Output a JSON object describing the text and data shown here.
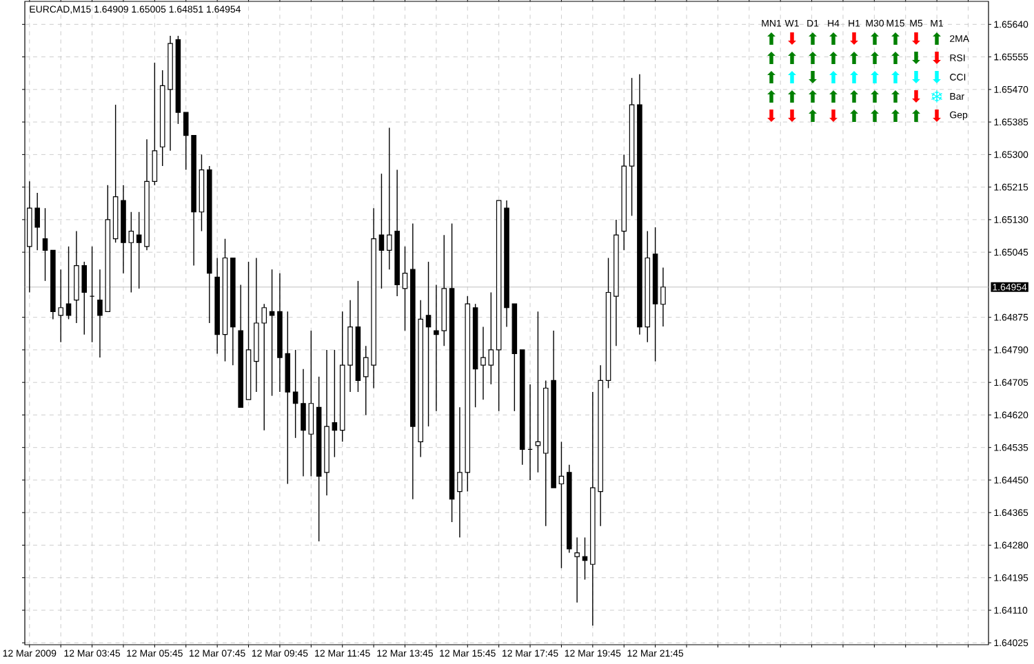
{
  "chart_data": [
    {
      "type": "candlestick",
      "title": "EURCAD,M15  1.64909 1.65005 1.64851 1.64954",
      "color": "#000000",
      "x": [
        "2009-03-12T01:45",
        "2009-03-12T02:00",
        "2009-03-12T02:15",
        "2009-03-12T02:30",
        "2009-03-12T02:45",
        "2009-03-12T03:00",
        "2009-03-12T03:15",
        "2009-03-12T03:30",
        "2009-03-12T03:45",
        "2009-03-12T04:00",
        "2009-03-12T04:15",
        "2009-03-12T04:30",
        "2009-03-12T04:45",
        "2009-03-12T05:00",
        "2009-03-12T05:15",
        "2009-03-12T05:30",
        "2009-03-12T05:45",
        "2009-03-12T06:00",
        "2009-03-12T06:15",
        "2009-03-12T06:30",
        "2009-03-12T06:45",
        "2009-03-12T07:00",
        "2009-03-12T07:15",
        "2009-03-12T07:30",
        "2009-03-12T07:45",
        "2009-03-12T08:00",
        "2009-03-12T08:15",
        "2009-03-12T08:30",
        "2009-03-12T08:45",
        "2009-03-12T09:00",
        "2009-03-12T09:15",
        "2009-03-12T09:30",
        "2009-03-12T09:45",
        "2009-03-12T10:00",
        "2009-03-12T10:15",
        "2009-03-12T10:30",
        "2009-03-12T10:45",
        "2009-03-12T11:00",
        "2009-03-12T11:15",
        "2009-03-12T11:30",
        "2009-03-12T11:45",
        "2009-03-12T12:00",
        "2009-03-12T12:15",
        "2009-03-12T12:30",
        "2009-03-12T12:45",
        "2009-03-12T13:00",
        "2009-03-12T13:15",
        "2009-03-12T13:30",
        "2009-03-12T13:45",
        "2009-03-12T14:00",
        "2009-03-12T14:15",
        "2009-03-12T14:30",
        "2009-03-12T14:45",
        "2009-03-12T15:00",
        "2009-03-12T15:15",
        "2009-03-12T15:30",
        "2009-03-12T15:45",
        "2009-03-12T16:00",
        "2009-03-12T16:15",
        "2009-03-12T16:30",
        "2009-03-12T16:45",
        "2009-03-12T17:00",
        "2009-03-12T17:15",
        "2009-03-12T17:30",
        "2009-03-12T17:45",
        "2009-03-12T18:00",
        "2009-03-12T18:15",
        "2009-03-12T18:30",
        "2009-03-12T18:45",
        "2009-03-12T19:00",
        "2009-03-12T19:15",
        "2009-03-12T19:30",
        "2009-03-12T19:45",
        "2009-03-12T20:00",
        "2009-03-12T20:15",
        "2009-03-12T20:30",
        "2009-03-12T20:45",
        "2009-03-12T21:00",
        "2009-03-12T21:15",
        "2009-03-12T21:30",
        "2009-03-12T21:45",
        "2009-03-12T22:00"
      ],
      "ohlc": [
        [
          1.6506,
          1.6523,
          1.6494,
          1.6516
        ],
        [
          1.6516,
          1.652,
          1.6505,
          1.6511
        ],
        [
          1.6508,
          1.6516,
          1.6497,
          1.6505
        ],
        [
          1.6505,
          1.6505,
          1.6487,
          1.6489
        ],
        [
          1.6488,
          1.65,
          1.6481,
          1.649
        ],
        [
          1.6491,
          1.6506,
          1.6487,
          1.6488
        ],
        [
          1.6492,
          1.651,
          1.6486,
          1.6501
        ],
        [
          1.6501,
          1.6502,
          1.6483,
          1.6494
        ],
        [
          1.6493,
          1.6506,
          1.6481,
          1.6493
        ],
        [
          1.6492,
          1.65,
          1.6477,
          1.6488
        ],
        [
          1.6489,
          1.6522,
          1.6489,
          1.6513
        ],
        [
          1.6508,
          1.6543,
          1.6507,
          1.6519
        ],
        [
          1.6518,
          1.6522,
          1.6499,
          1.6507
        ],
        [
          1.6507,
          1.6515,
          1.6494,
          1.651
        ],
        [
          1.6509,
          1.6515,
          1.6495,
          1.6507
        ],
        [
          1.6506,
          1.6534,
          1.6505,
          1.6523
        ],
        [
          1.6523,
          1.6554,
          1.6522,
          1.6531
        ],
        [
          1.6532,
          1.6552,
          1.6527,
          1.6548
        ],
        [
          1.6547,
          1.6561,
          1.6531,
          1.6559
        ],
        [
          1.656,
          1.6561,
          1.6538,
          1.6541
        ],
        [
          1.6541,
          1.6541,
          1.6526,
          1.6535
        ],
        [
          1.6535,
          1.6535,
          1.6501,
          1.6515
        ],
        [
          1.6515,
          1.653,
          1.651,
          1.6526
        ],
        [
          1.6526,
          1.6527,
          1.6486,
          1.6499
        ],
        [
          1.6498,
          1.6503,
          1.6478,
          1.6483
        ],
        [
          1.6483,
          1.6508,
          1.6476,
          1.6503
        ],
        [
          1.6503,
          1.6503,
          1.6475,
          1.6485
        ],
        [
          1.6484,
          1.6496,
          1.6464,
          1.6464
        ],
        [
          1.6466,
          1.6502,
          1.6466,
          1.6479
        ],
        [
          1.6476,
          1.6503,
          1.6468,
          1.6486
        ],
        [
          1.6486,
          1.6491,
          1.6458,
          1.649
        ],
        [
          1.6489,
          1.65,
          1.6467,
          1.6488
        ],
        [
          1.6489,
          1.6499,
          1.6468,
          1.6477
        ],
        [
          1.6478,
          1.6489,
          1.6444,
          1.6468
        ],
        [
          1.6468,
          1.6479,
          1.6456,
          1.6465
        ],
        [
          1.6465,
          1.6474,
          1.6446,
          1.6458
        ],
        [
          1.6457,
          1.6484,
          1.6446,
          1.6465
        ],
        [
          1.6464,
          1.6472,
          1.6429,
          1.6446
        ],
        [
          1.6447,
          1.6479,
          1.6441,
          1.6459
        ],
        [
          1.646,
          1.6479,
          1.6451,
          1.6458
        ],
        [
          1.6458,
          1.6489,
          1.6455,
          1.6475
        ],
        [
          1.6475,
          1.6492,
          1.6468,
          1.6485
        ],
        [
          1.6485,
          1.6497,
          1.6468,
          1.6471
        ],
        [
          1.6472,
          1.648,
          1.6462,
          1.6477
        ],
        [
          1.6475,
          1.6516,
          1.6469,
          1.6508
        ],
        [
          1.6509,
          1.6525,
          1.6495,
          1.6505
        ],
        [
          1.6505,
          1.6537,
          1.65,
          1.6509
        ],
        [
          1.651,
          1.6526,
          1.6493,
          1.6496
        ],
        [
          1.6495,
          1.6506,
          1.6484,
          1.6499
        ],
        [
          1.65,
          1.6512,
          1.644,
          1.6459
        ],
        [
          1.6455,
          1.6492,
          1.6451,
          1.6487
        ],
        [
          1.6488,
          1.6502,
          1.6459,
          1.6485
        ],
        [
          1.6484,
          1.6496,
          1.6463,
          1.6483
        ],
        [
          1.6484,
          1.6509,
          1.648,
          1.6495
        ],
        [
          1.6495,
          1.6512,
          1.6434,
          1.644
        ],
        [
          1.6442,
          1.6464,
          1.643,
          1.6447
        ],
        [
          1.6447,
          1.6493,
          1.6442,
          1.6491
        ],
        [
          1.649,
          1.6491,
          1.6464,
          1.6474
        ],
        [
          1.6475,
          1.6485,
          1.6466,
          1.6477
        ],
        [
          1.6475,
          1.6494,
          1.647,
          1.6479
        ],
        [
          1.6479,
          1.6518,
          1.6463,
          1.6518
        ],
        [
          1.6516,
          1.6518,
          1.6485,
          1.649
        ],
        [
          1.6491,
          1.6491,
          1.6463,
          1.6478
        ],
        [
          1.6479,
          1.6479,
          1.6449,
          1.6453
        ],
        [
          1.6453,
          1.647,
          1.6445,
          1.6453
        ],
        [
          1.6454,
          1.6489,
          1.6447,
          1.6455
        ],
        [
          1.6452,
          1.6471,
          1.6433,
          1.6469
        ],
        [
          1.6471,
          1.6484,
          1.6443,
          1.6443
        ],
        [
          1.6444,
          1.6455,
          1.6422,
          1.6446
        ],
        [
          1.6447,
          1.6449,
          1.6426,
          1.6427
        ],
        [
          1.6425,
          1.643,
          1.6413,
          1.6426
        ],
        [
          1.6425,
          1.643,
          1.6419,
          1.6424
        ],
        [
          1.6423,
          1.6468,
          1.6407,
          1.6443
        ],
        [
          1.6442,
          1.6475,
          1.6433,
          1.6471
        ],
        [
          1.6471,
          1.6503,
          1.6469,
          1.6494
        ],
        [
          1.6493,
          1.6513,
          1.648,
          1.6509
        ],
        [
          1.651,
          1.653,
          1.6505,
          1.6527
        ],
        [
          1.6527,
          1.655,
          1.6514,
          1.6543
        ],
        [
          1.6543,
          1.6551,
          1.6483,
          1.6485
        ],
        [
          1.6485,
          1.651,
          1.6481,
          1.6503
        ],
        [
          1.6504,
          1.6511,
          1.6476,
          1.6491
        ],
        [
          1.64909,
          1.65005,
          1.64851,
          1.64954
        ]
      ],
      "xlim": [
        "2009-03-12T01:36",
        "2009-03-13T08:24"
      ],
      "xticks": [
        {
          "value": "2009-03-12T01:45",
          "label": "12 Mar 2009"
        },
        {
          "value": "2009-03-12T02:45",
          "label": null
        },
        {
          "value": "2009-03-12T03:45",
          "label": "12 Mar 03:45"
        },
        {
          "value": "2009-03-12T04:45",
          "label": null
        },
        {
          "value": "2009-03-12T05:45",
          "label": "12 Mar 05:45"
        },
        {
          "value": "2009-03-12T06:45",
          "label": null
        },
        {
          "value": "2009-03-12T07:45",
          "label": "12 Mar 07:45"
        },
        {
          "value": "2009-03-12T08:45",
          "label": null
        },
        {
          "value": "2009-03-12T09:45",
          "label": "12 Mar 09:45"
        },
        {
          "value": "2009-03-12T10:45",
          "label": null
        },
        {
          "value": "2009-03-12T11:45",
          "label": "12 Mar 11:45"
        },
        {
          "value": "2009-03-12T12:45",
          "label": null
        },
        {
          "value": "2009-03-12T13:45",
          "label": "12 Mar 13:45"
        },
        {
          "value": "2009-03-12T14:45",
          "label": null
        },
        {
          "value": "2009-03-12T15:45",
          "label": "12 Mar 15:45"
        },
        {
          "value": "2009-03-12T16:45",
          "label": null
        },
        {
          "value": "2009-03-12T17:45",
          "label": "12 Mar 17:45"
        },
        {
          "value": "2009-03-12T18:45",
          "label": null
        },
        {
          "value": "2009-03-12T19:45",
          "label": "12 Mar 19:45"
        },
        {
          "value": "2009-03-12T20:45",
          "label": null
        },
        {
          "value": "2009-03-12T21:45",
          "label": "12 Mar 21:45"
        },
        {
          "value": "2009-03-12T22:45",
          "label": null
        },
        {
          "value": "2009-03-12T23:45",
          "label": null
        },
        {
          "value": "2009-03-13T00:45",
          "label": null
        },
        {
          "value": "2009-03-13T01:45",
          "label": null
        },
        {
          "value": "2009-03-13T02:45",
          "label": null
        },
        {
          "value": "2009-03-13T03:45",
          "label": null
        },
        {
          "value": "2009-03-13T04:45",
          "label": null
        },
        {
          "value": "2009-03-13T05:45",
          "label": null
        },
        {
          "value": "2009-03-13T06:45",
          "label": null
        },
        {
          "value": "2009-03-13T07:45",
          "label": null
        }
      ],
      "ylim": [
        1.6402,
        1.657
      ],
      "yticks": [
        1.64025,
        {
          "value": 1.6411,
          "label": "1.64110"
        },
        1.64195,
        {
          "value": 1.6428,
          "label": "1.64280"
        },
        1.64365,
        {
          "value": 1.6445,
          "label": "1.64450"
        },
        1.64535,
        {
          "value": 1.6462,
          "label": "1.64620"
        },
        1.64705,
        {
          "value": 1.6479,
          "label": "1.64790"
        },
        1.64875,
        1.65045,
        {
          "value": 1.6513,
          "label": "1.65130"
        },
        1.65215,
        {
          "value": 1.653,
          "label": "1.65300"
        },
        1.65385,
        {
          "value": 1.6547,
          "label": "1.65470"
        },
        1.65555,
        {
          "value": 1.6564,
          "label": "1.65640"
        }
      ],
      "grid": true,
      "ref_lines": [
        {
          "axis": "y",
          "value": 1.64954,
          "label": "1.64954",
          "color": "#c0c0c0"
        }
      ]
    },
    {
      "type": "other",
      "categories": [
        "MN1",
        "W1",
        "D1",
        "H4",
        "H1",
        "M30",
        "M15",
        "M5",
        "M1"
      ],
      "y2_categories": [
        "2MA",
        "RSI",
        "CCI",
        "Bar",
        "Gep"
      ],
      "cell_labels": [
        [
          "⬆",
          "⬇",
          "⬆",
          "⬆",
          "⬇",
          "⬆",
          "⬆",
          "⬇",
          "⬆"
        ],
        [
          "⬆",
          "⬆",
          "⬆",
          "⬆",
          "⬆",
          "⬆",
          "⬆",
          "⬇",
          "⬇"
        ],
        [
          "⬆",
          "⬆",
          "⬇",
          "⬆",
          "⬆",
          "⬆",
          "⬆",
          "⬇",
          "⬇"
        ],
        [
          "⬆",
          "⬆",
          "⬆",
          "⬆",
          "⬆",
          "⬆",
          "⬆",
          "⬇",
          "❄"
        ],
        [
          "⬇",
          "⬇",
          "⬆",
          "⬇",
          "⬆",
          "⬆",
          "⬆",
          "⬆",
          "⬇"
        ]
      ],
      "colors": [
        [
          "#008000",
          "#ff0000",
          "#008000",
          "#008000",
          "#ff0000",
          "#008000",
          "#008000",
          "#ff0000",
          "#008000"
        ],
        [
          "#008000",
          "#008000",
          "#008000",
          "#008000",
          "#008000",
          "#008000",
          "#008000",
          "#008000",
          "#ff0000"
        ],
        [
          "#008000",
          "#00ffff",
          "#008000",
          "#00ffff",
          "#00ffff",
          "#00ffff",
          "#00ffff",
          "#00ffff",
          "#00ffff"
        ],
        [
          "#008000",
          "#008000",
          "#008000",
          "#008000",
          "#008000",
          "#008000",
          "#008000",
          "#ff0000",
          "#00ffff"
        ],
        [
          "#ff0000",
          "#ff0000",
          "#008000",
          "#ff0000",
          "#008000",
          "#008000",
          "#008000",
          "#008000",
          "#ff0000"
        ]
      ]
    }
  ]
}
